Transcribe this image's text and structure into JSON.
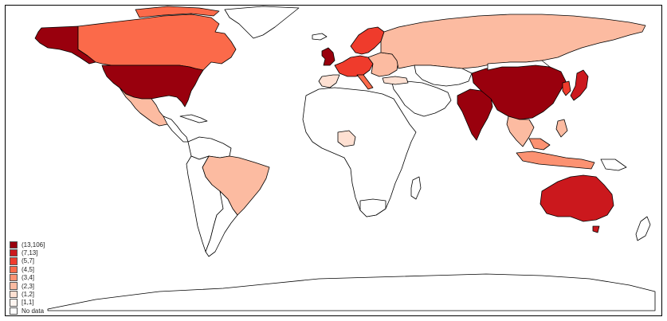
{
  "map": {
    "legend": {
      "items": [
        {
          "label": "(13,106]",
          "color": "#99000d"
        },
        {
          "label": "(7,13]",
          "color": "#cb181d"
        },
        {
          "label": "(5,7]",
          "color": "#ef3b2c"
        },
        {
          "label": "(4,5]",
          "color": "#fb6a4a"
        },
        {
          "label": "(3,4]",
          "color": "#fc9272"
        },
        {
          "label": "(2,3]",
          "color": "#fcbba1"
        },
        {
          "label": "(1,2]",
          "color": "#fee0d2"
        },
        {
          "label": "[1,1]",
          "color": "#fff5f0"
        },
        {
          "label": "No data",
          "color": "#ffffff"
        }
      ]
    },
    "colors": {
      "no_data": "#ffffff",
      "outline": "#000000"
    }
  }
}
